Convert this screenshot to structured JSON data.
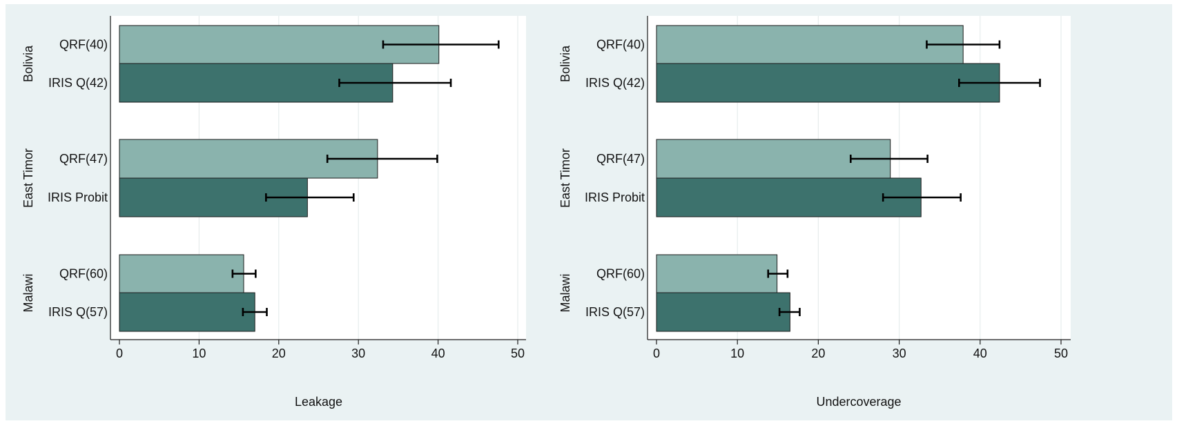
{
  "chart_data": [
    {
      "type": "bar",
      "orientation": "horizontal",
      "xlabel": "Leakage",
      "xlim": [
        0,
        50
      ],
      "xticks": [
        0,
        10,
        20,
        30,
        40,
        50
      ],
      "grid": true,
      "groups": [
        {
          "name": "Bolivia",
          "bars": [
            {
              "label": "QRF(40)",
              "value": 40.1,
              "ci": [
                33.1,
                47.6
              ],
              "series": "QRF"
            },
            {
              "label": "IRIS Q(42)",
              "value": 34.3,
              "ci": [
                27.6,
                41.6
              ],
              "series": "IRIS"
            }
          ]
        },
        {
          "name": "East Timor",
          "bars": [
            {
              "label": "QRF(47)",
              "value": 32.4,
              "ci": [
                26.1,
                39.9
              ],
              "series": "QRF"
            },
            {
              "label": "IRIS Probit",
              "value": 23.6,
              "ci": [
                18.4,
                29.4
              ],
              "series": "IRIS"
            }
          ]
        },
        {
          "name": "Malawi",
          "bars": [
            {
              "label": "QRF(60)",
              "value": 15.6,
              "ci": [
                14.2,
                17.1
              ],
              "series": "QRF"
            },
            {
              "label": "IRIS Q(57)",
              "value": 17.0,
              "ci": [
                15.5,
                18.5
              ],
              "series": "IRIS"
            }
          ]
        }
      ]
    },
    {
      "type": "bar",
      "orientation": "horizontal",
      "xlabel": "Undercoverage",
      "xlim": [
        0,
        50
      ],
      "xticks": [
        0,
        10,
        20,
        30,
        40,
        50
      ],
      "grid": true,
      "groups": [
        {
          "name": "Bolivia",
          "bars": [
            {
              "label": "QRF(40)",
              "value": 37.9,
              "ci": [
                33.4,
                42.4
              ],
              "series": "QRF"
            },
            {
              "label": "IRIS Q(42)",
              "value": 42.4,
              "ci": [
                37.4,
                47.4
              ],
              "series": "IRIS"
            }
          ]
        },
        {
          "name": "East Timor",
          "bars": [
            {
              "label": "QRF(47)",
              "value": 28.9,
              "ci": [
                24.0,
                33.5
              ],
              "series": "QRF"
            },
            {
              "label": "IRIS Probit",
              "value": 32.7,
              "ci": [
                28.0,
                37.6
              ],
              "series": "IRIS"
            }
          ]
        },
        {
          "name": "Malawi",
          "bars": [
            {
              "label": "QRF(60)",
              "value": 14.9,
              "ci": [
                13.8,
                16.2
              ],
              "series": "QRF"
            },
            {
              "label": "IRIS Q(57)",
              "value": 16.5,
              "ci": [
                15.2,
                17.7
              ],
              "series": "IRIS"
            }
          ]
        }
      ]
    }
  ],
  "colors": {
    "outer_background": "#eaf2f3",
    "plot_background": "#ffffff",
    "grid": "#e6ecec",
    "QRF": "#8ab3ad",
    "IRIS": "#3d726d",
    "error_bar": "#000000"
  }
}
